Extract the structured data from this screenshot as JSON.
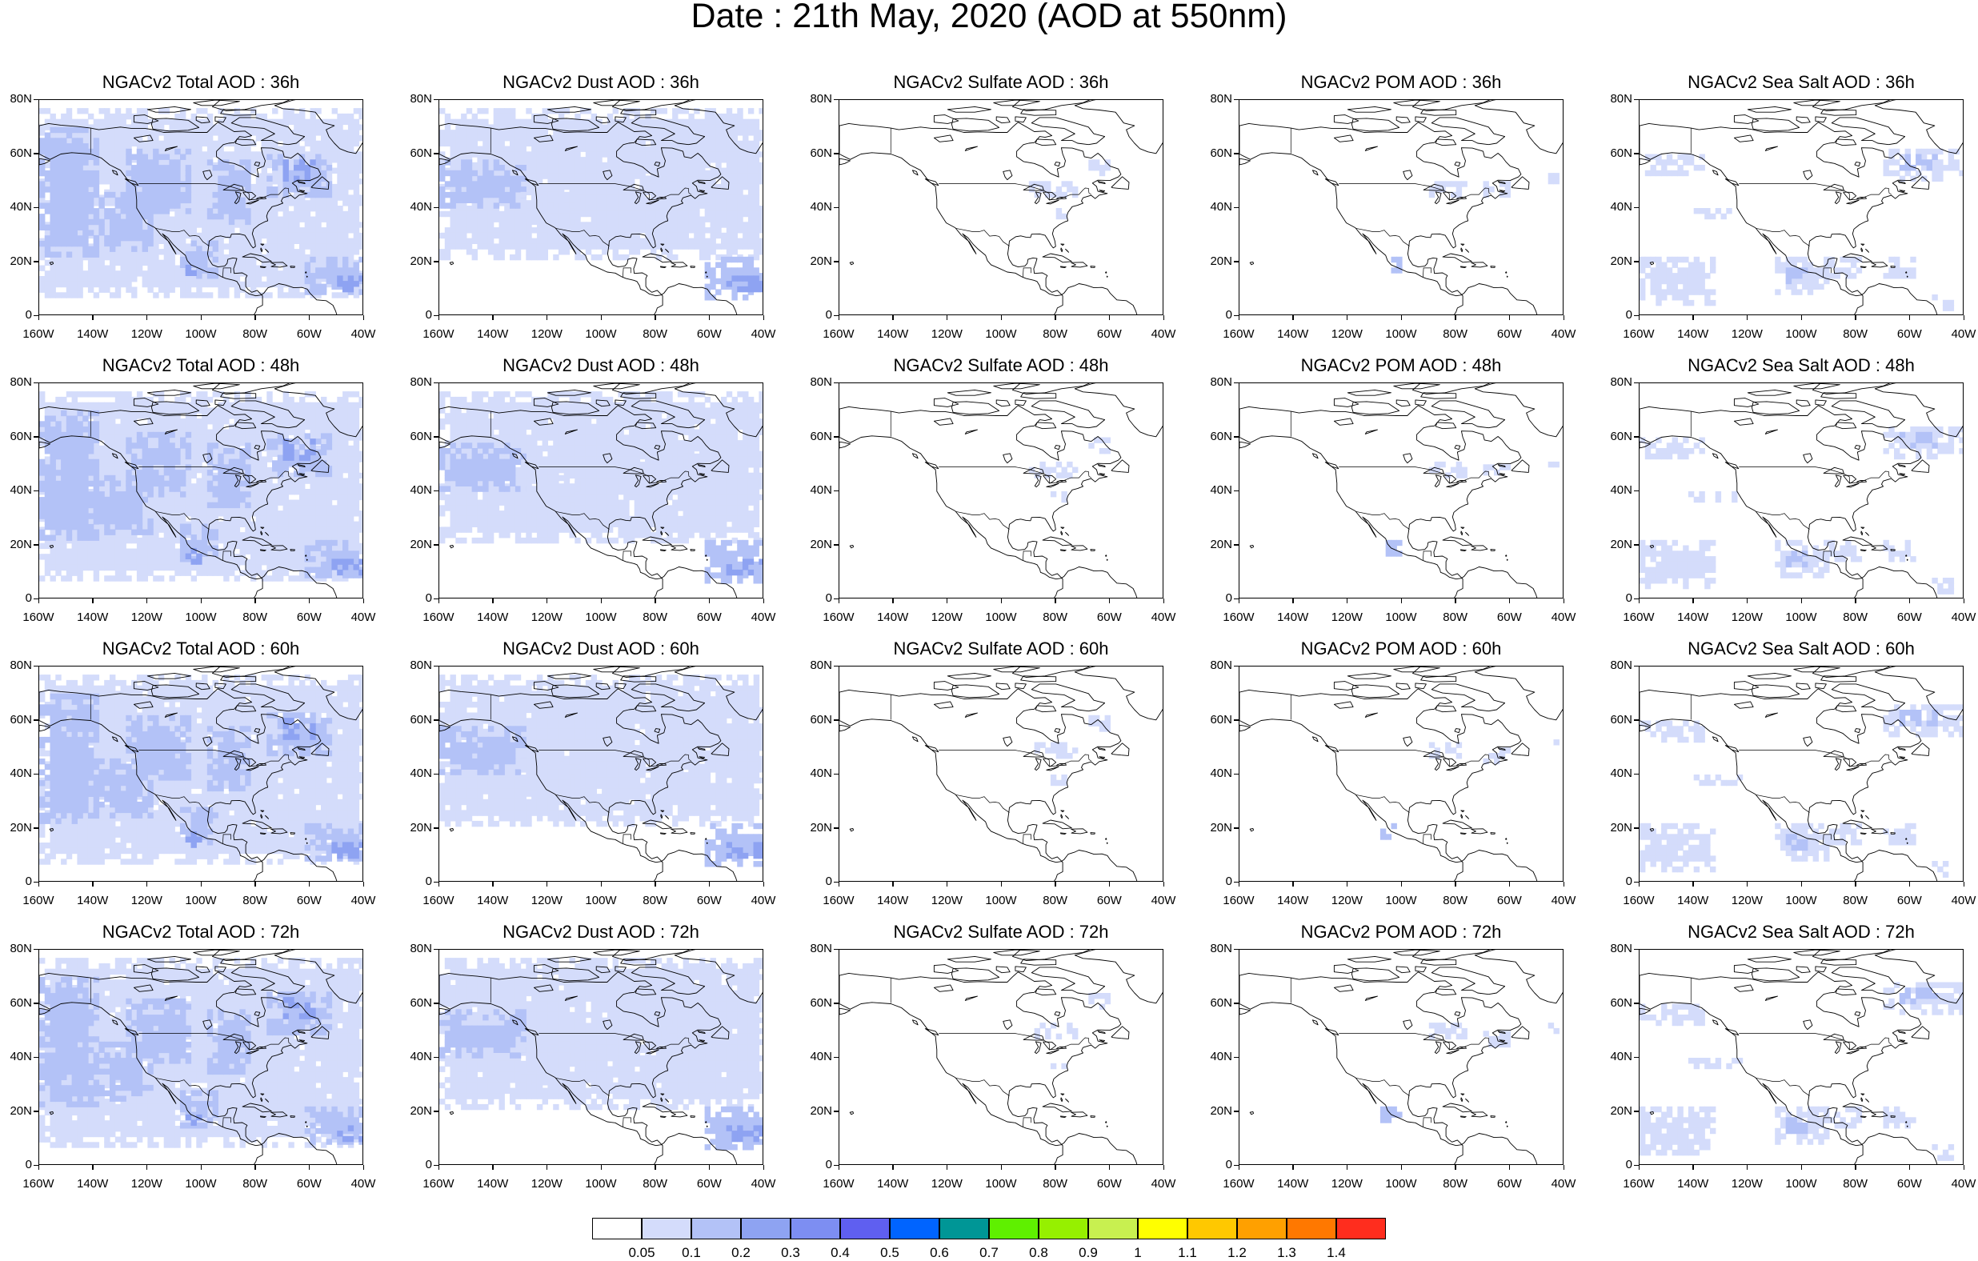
{
  "title": "Date : 21th May, 2020 (AOD at 550nm)",
  "x_tick_labels": [
    "160W",
    "140W",
    "120W",
    "100W",
    "80W",
    "60W",
    "40W"
  ],
  "y_tick_labels": [
    "0",
    "20N",
    "40N",
    "60N",
    "80N"
  ],
  "colors": {
    "light": "#d4dcfb",
    "medium": "#b3c2f7",
    "strong": "#8ea3f2",
    "coast": "#000000"
  },
  "panels": [
    {
      "title": "NGACv2 Total AOD : 36h",
      "kind": "total"
    },
    {
      "title": "NGACv2 Dust AOD : 36h",
      "kind": "dust"
    },
    {
      "title": "NGACv2 Sulfate AOD : 36h",
      "kind": "sulfate"
    },
    {
      "title": "NGACv2 POM AOD : 36h",
      "kind": "pom"
    },
    {
      "title": "NGACv2 Sea Salt AOD : 36h",
      "kind": "seasalt"
    },
    {
      "title": "NGACv2 Total AOD : 48h",
      "kind": "total"
    },
    {
      "title": "NGACv2 Dust AOD : 48h",
      "kind": "dust"
    },
    {
      "title": "NGACv2 Sulfate AOD : 48h",
      "kind": "sulfate"
    },
    {
      "title": "NGACv2 POM AOD : 48h",
      "kind": "pom"
    },
    {
      "title": "NGACv2 Sea Salt AOD : 48h",
      "kind": "seasalt"
    },
    {
      "title": "NGACv2 Total AOD : 60h",
      "kind": "total"
    },
    {
      "title": "NGACv2 Dust AOD : 60h",
      "kind": "dust"
    },
    {
      "title": "NGACv2 Sulfate AOD : 60h",
      "kind": "sulfate"
    },
    {
      "title": "NGACv2 POM AOD : 60h",
      "kind": "pom"
    },
    {
      "title": "NGACv2 Sea Salt AOD : 60h",
      "kind": "seasalt"
    },
    {
      "title": "NGACv2 Total AOD : 72h",
      "kind": "total"
    },
    {
      "title": "NGACv2 Dust AOD : 72h",
      "kind": "dust"
    },
    {
      "title": "NGACv2 Sulfate AOD : 72h",
      "kind": "sulfate"
    },
    {
      "title": "NGACv2 POM AOD : 72h",
      "kind": "pom"
    },
    {
      "title": "NGACv2 Sea Salt  AOD : 72h",
      "kind": "seasalt"
    }
  ],
  "colorbar": {
    "colors": [
      "#ffffff",
      "#d4dcfb",
      "#b3c2f7",
      "#8ea3f2",
      "#7d8ef2",
      "#5f5ff0",
      "#0064ff",
      "#009696",
      "#5ff000",
      "#96f000",
      "#c8f050",
      "#ffff00",
      "#ffc800",
      "#ffa000",
      "#ff7800",
      "#ff2d1e"
    ],
    "labels": [
      "0.05",
      "0.1",
      "0.2",
      "0.3",
      "0.4",
      "0.5",
      "0.6",
      "0.7",
      "0.8",
      "0.9",
      "1",
      "1.1",
      "1.2",
      "1.3",
      "1.4"
    ]
  }
}
